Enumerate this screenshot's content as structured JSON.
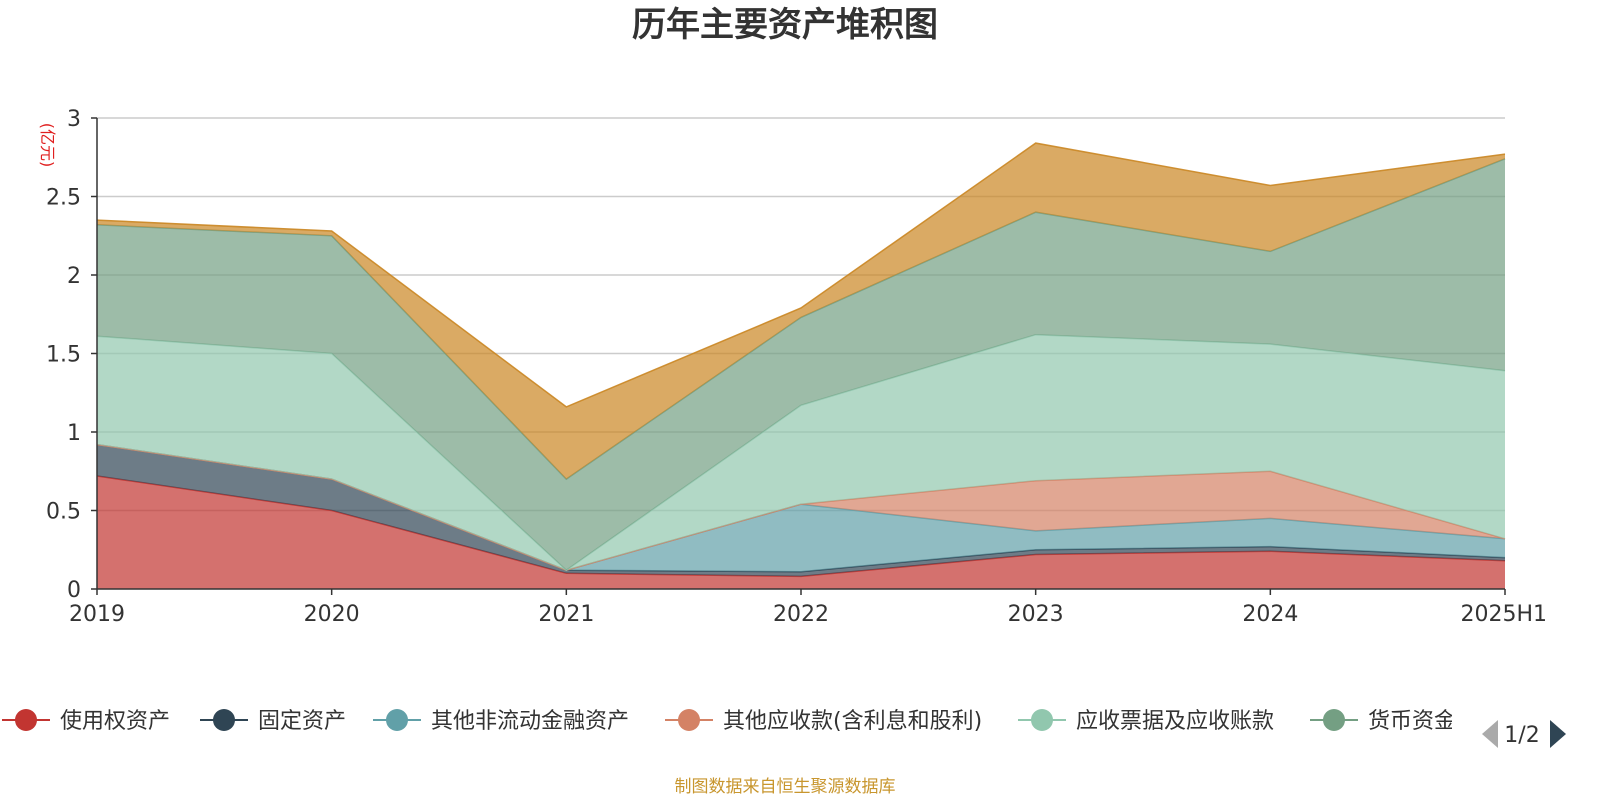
{
  "chart_data": {
    "type": "area",
    "stacked": true,
    "title": "历年主要资产堆积图",
    "unit_label": "(亿元)",
    "x": [
      "2019",
      "2020",
      "2021",
      "2022",
      "2023",
      "2024",
      "2025H1"
    ],
    "y_ticks": [
      "0",
      "0.5",
      "1",
      "1.5",
      "2",
      "2.5",
      "3"
    ],
    "ylim": [
      0,
      3
    ],
    "grid": true,
    "legend_position": "bottom",
    "series": [
      {
        "name": "使用权资产",
        "color": "#c23531",
        "values": [
          0.72,
          0.5,
          0.1,
          0.08,
          0.22,
          0.24,
          0.18
        ]
      },
      {
        "name": "固定资产",
        "color": "#2f4554",
        "values": [
          0.2,
          0.2,
          0.02,
          0.03,
          0.03,
          0.03,
          0.02
        ]
      },
      {
        "name": "其他非流动金融资产",
        "color": "#61a0a8",
        "values": [
          0,
          0,
          0,
          0.43,
          0.12,
          0.18,
          0.12
        ]
      },
      {
        "name": "其他应收款(含利息和股利)",
        "color": "#d48265",
        "values": [
          0,
          0,
          0,
          0,
          0.32,
          0.3,
          0
        ]
      },
      {
        "name": "应收票据及应收账款",
        "color": "#91c7ae",
        "values": [
          0.69,
          0.8,
          0.0,
          0.63,
          0.93,
          0.81,
          1.07
        ]
      },
      {
        "name": "货币资金",
        "color": "#749f83",
        "values": [
          0.71,
          0.75,
          0.58,
          0.56,
          0.78,
          0.59,
          1.35
        ]
      },
      {
        "name": "",
        "color": "#ca8622",
        "values": [
          0.03,
          0.03,
          0.46,
          0.06,
          0.44,
          0.42,
          0.03
        ]
      }
    ]
  },
  "legend": {
    "items": [
      "使用权资产",
      "固定资产",
      "其他非流动金融资产",
      "其他应收款(含利息和股利)",
      "应收票据及应收账款",
      "货币资金"
    ],
    "page_indicator": "1/2"
  },
  "footer": {
    "source": "制图数据来自恒生聚源数据库"
  }
}
